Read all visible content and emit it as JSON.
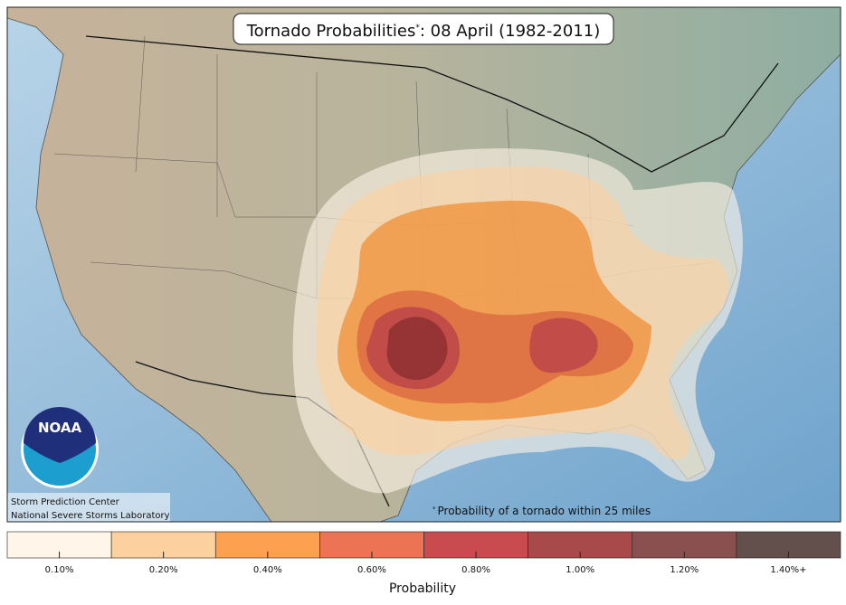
{
  "header": {
    "title_main": "Tornado Probabilities",
    "title_marker": "*",
    "title_date": ": 08 April (1982-2011)"
  },
  "footnote": {
    "marker": "*",
    "text": "Probability of a tornado within 25 miles"
  },
  "logo": {
    "text": "NOAA"
  },
  "credits": [
    "Storm Prediction Center",
    "National Severe Storms Laboratory"
  ],
  "legend": {
    "title": "Probability",
    "items": [
      {
        "label": "0.10%",
        "color": "#fff5e8"
      },
      {
        "label": "0.20%",
        "color": "#fdd0a0"
      },
      {
        "label": "0.40%",
        "color": "#fda04f"
      },
      {
        "label": "0.60%",
        "color": "#ec7353"
      },
      {
        "label": "0.80%",
        "color": "#c94b4f"
      },
      {
        "label": "1.00%",
        "color": "#a84a4a"
      },
      {
        "label": "1.20%",
        "color": "#8a5050"
      },
      {
        "label": "1.40%+",
        "color": "#634f4c"
      }
    ]
  }
}
